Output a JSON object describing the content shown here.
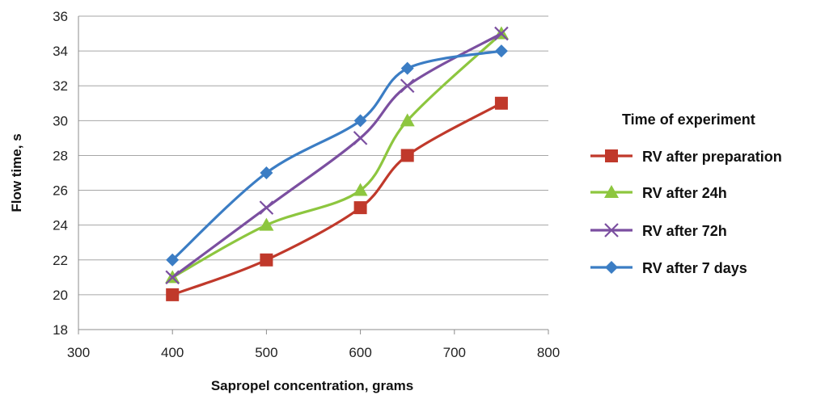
{
  "chart_data": {
    "type": "line",
    "xlabel": "Sapropel concentration, grams",
    "ylabel": "Flow time, s",
    "xlim": [
      300,
      800
    ],
    "ylim": [
      18,
      36
    ],
    "x_ticks": [
      "300",
      "400",
      "500",
      "600",
      "700",
      "800"
    ],
    "y_ticks": [
      "18",
      "20",
      "22",
      "24",
      "26",
      "28",
      "30",
      "32",
      "34",
      "36"
    ],
    "grid": "horizontal",
    "legend_title": "Time of experiment",
    "legend_position": "right",
    "x": [
      400,
      500,
      600,
      650,
      750
    ],
    "series": [
      {
        "name": "RV after preparation",
        "values": [
          20,
          22,
          25,
          28,
          31
        ],
        "color": "#c0392b",
        "marker": "square"
      },
      {
        "name": "RV after 24h",
        "values": [
          21,
          24,
          26,
          30,
          35
        ],
        "color": "#8dc63f",
        "marker": "triangle"
      },
      {
        "name": "RV after 72h",
        "values": [
          21,
          25,
          29,
          32,
          35
        ],
        "color": "#7b4fa0",
        "marker": "x"
      },
      {
        "name": "RV after 7 days",
        "values": [
          22,
          27,
          30,
          33,
          34
        ],
        "color": "#3b7dc4",
        "marker": "diamond"
      }
    ]
  }
}
